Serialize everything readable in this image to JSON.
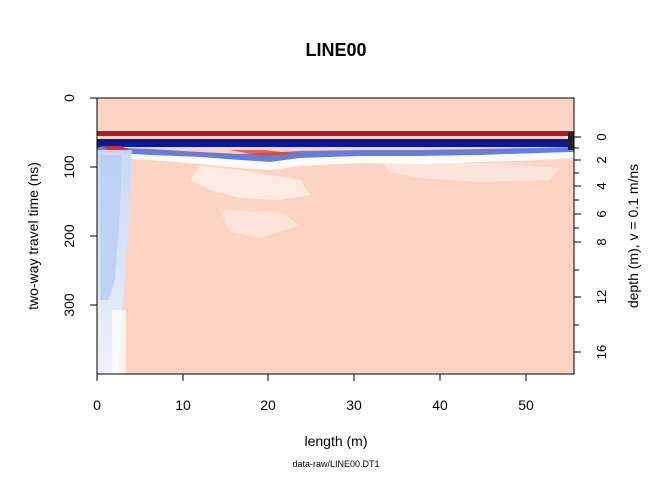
{
  "chart_data": {
    "type": "heatmap",
    "title": "LINE00",
    "subtitle": "data-raw/LINE00.DT1",
    "xlabel": "length (m)",
    "ylabel": "two-way travel time (ns)",
    "ylabel_right": "depth (m),  v = 0.1 m/ns",
    "xlim": [
      0,
      55.6
    ],
    "ylim": [
      0,
      400
    ],
    "x_ticks": [
      0,
      10,
      20,
      30,
      40,
      50
    ],
    "y_ticks": [
      0,
      100,
      200,
      300
    ],
    "depth_ticks": [
      0,
      2,
      4,
      6,
      8,
      12,
      16
    ],
    "depth_minor_ticks": [
      1,
      3,
      5,
      7,
      10,
      14,
      18
    ],
    "time_zero_ns": 57,
    "velocity_m_per_ns": 0.1,
    "colors": {
      "background_positive": "#fdd4c4",
      "strong_positive": "#b2182b",
      "strong_negative": "#0a1a96",
      "negative": "#4a6ee0",
      "weak_negative": "#dce8fb",
      "white": "#ffffff"
    }
  }
}
